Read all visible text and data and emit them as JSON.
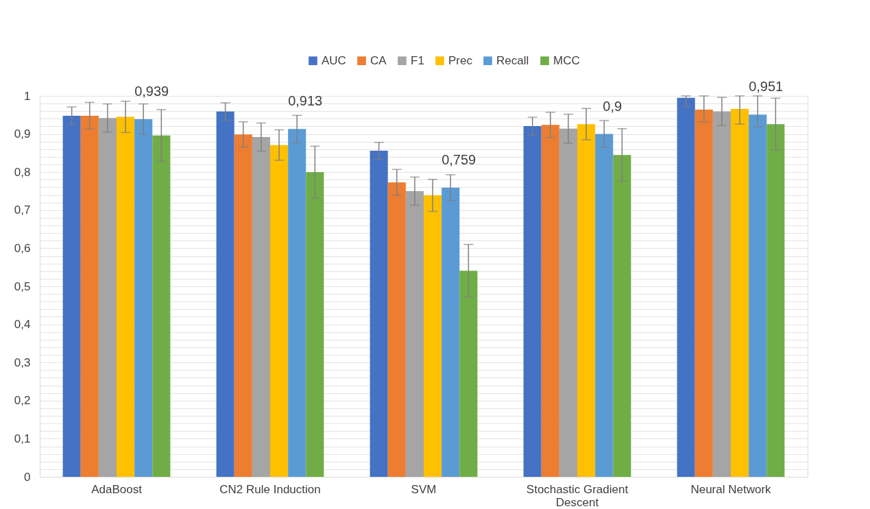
{
  "chart_data": {
    "type": "bar",
    "categories": [
      "AdaBoost",
      "CN2 Rule Induction",
      "SVM",
      "Stochastic Gradient Descent",
      "Neural Network"
    ],
    "series": [
      {
        "name": "AUC",
        "color": "#4472c4",
        "values": [
          0.948,
          0.959,
          0.856,
          0.921,
          0.995
        ],
        "errors": [
          0.023,
          0.023,
          0.022,
          0.023,
          [
            0.971,
            1.0
          ]
        ]
      },
      {
        "name": "CA",
        "color": "#ed7d31",
        "values": [
          0.948,
          0.899,
          0.773,
          0.924,
          0.964
        ],
        "errors": [
          0.035,
          0.033,
          0.034,
          0.033,
          [
            0.932,
            1.0
          ]
        ]
      },
      {
        "name": "F1",
        "color": "#a5a5a5",
        "values": [
          0.942,
          0.892,
          0.75,
          0.914,
          0.959
        ],
        "errors": [
          0.037,
          0.037,
          0.037,
          0.038,
          0.037
        ]
      },
      {
        "name": "Prec",
        "color": "#ffc000",
        "values": [
          0.945,
          0.871,
          0.739,
          0.926,
          0.966
        ],
        "errors": [
          0.041,
          0.04,
          0.042,
          0.041,
          [
            0.926,
            1.0
          ]
        ]
      },
      {
        "name": "Recall",
        "color": "#5b9bd5",
        "values": [
          0.939,
          0.913,
          0.759,
          0.9,
          0.951
        ],
        "errors": [
          0.04,
          0.036,
          0.034,
          0.035,
          [
            0.919,
            1.0
          ]
        ],
        "value_labels": [
          "0,939",
          "0,913",
          "0,759",
          "0,9",
          "0,951"
        ]
      },
      {
        "name": "MCC",
        "color": "#70ad47",
        "values": [
          0.896,
          0.8,
          0.541,
          0.845,
          0.926
        ],
        "errors": [
          0.068,
          0.068,
          0.069,
          0.069,
          0.068
        ]
      }
    ],
    "ylim": [
      0,
      1
    ],
    "yticks": [
      0,
      {
        "value": 0.02,
        "label": null
      },
      {
        "value": 0.04,
        "label": null
      },
      {
        "value": 0.06,
        "label": null
      },
      {
        "value": 0.08,
        "label": null
      },
      {
        "value": 0.1,
        "label": "0,1"
      },
      {
        "value": 0.12,
        "label": null
      },
      {
        "value": 0.14,
        "label": null
      },
      {
        "value": 0.16,
        "label": null
      },
      {
        "value": 0.18,
        "label": null
      },
      {
        "value": 0.2,
        "label": "0,2"
      },
      {
        "value": 0.22,
        "label": null
      },
      {
        "value": 0.24,
        "label": null
      },
      {
        "value": 0.26,
        "label": null
      },
      {
        "value": 0.28,
        "label": null
      },
      {
        "value": 0.3,
        "label": "0,3"
      },
      {
        "value": 0.32,
        "label": null
      },
      {
        "value": 0.34,
        "label": null
      },
      {
        "value": 0.36,
        "label": null
      },
      {
        "value": 0.38,
        "label": null
      },
      {
        "value": 0.4,
        "label": "0,4"
      },
      {
        "value": 0.42,
        "label": null
      },
      {
        "value": 0.44,
        "label": null
      },
      {
        "value": 0.46,
        "label": null
      },
      {
        "value": 0.48,
        "label": null
      },
      {
        "value": 0.5,
        "label": "0,5"
      },
      {
        "value": 0.52,
        "label": null
      },
      {
        "value": 0.54,
        "label": null
      },
      {
        "value": 0.56,
        "label": null
      },
      {
        "value": 0.58,
        "label": null
      },
      {
        "value": 0.6,
        "label": "0,6"
      },
      {
        "value": 0.62,
        "label": null
      },
      {
        "value": 0.64,
        "label": null
      },
      {
        "value": 0.66,
        "label": null
      },
      {
        "value": 0.68,
        "label": null
      },
      {
        "value": 0.7,
        "label": "0,7"
      },
      {
        "value": 0.72,
        "label": null
      },
      {
        "value": 0.74,
        "label": null
      },
      {
        "value": 0.76,
        "label": null
      },
      {
        "value": 0.78,
        "label": null
      },
      {
        "value": 0.8,
        "label": "0,8"
      },
      {
        "value": 0.82,
        "label": null
      },
      {
        "value": 0.84,
        "label": null
      },
      {
        "value": 0.86,
        "label": null
      },
      {
        "value": 0.88,
        "label": null
      },
      {
        "value": 0.9,
        "label": "0,9"
      },
      {
        "value": 0.92,
        "label": null
      },
      {
        "value": 0.94,
        "label": null
      },
      {
        "value": 0.96,
        "label": null
      },
      {
        "value": 0.98,
        "label": null
      },
      1
    ],
    "grid": "y",
    "legend": "top"
  }
}
